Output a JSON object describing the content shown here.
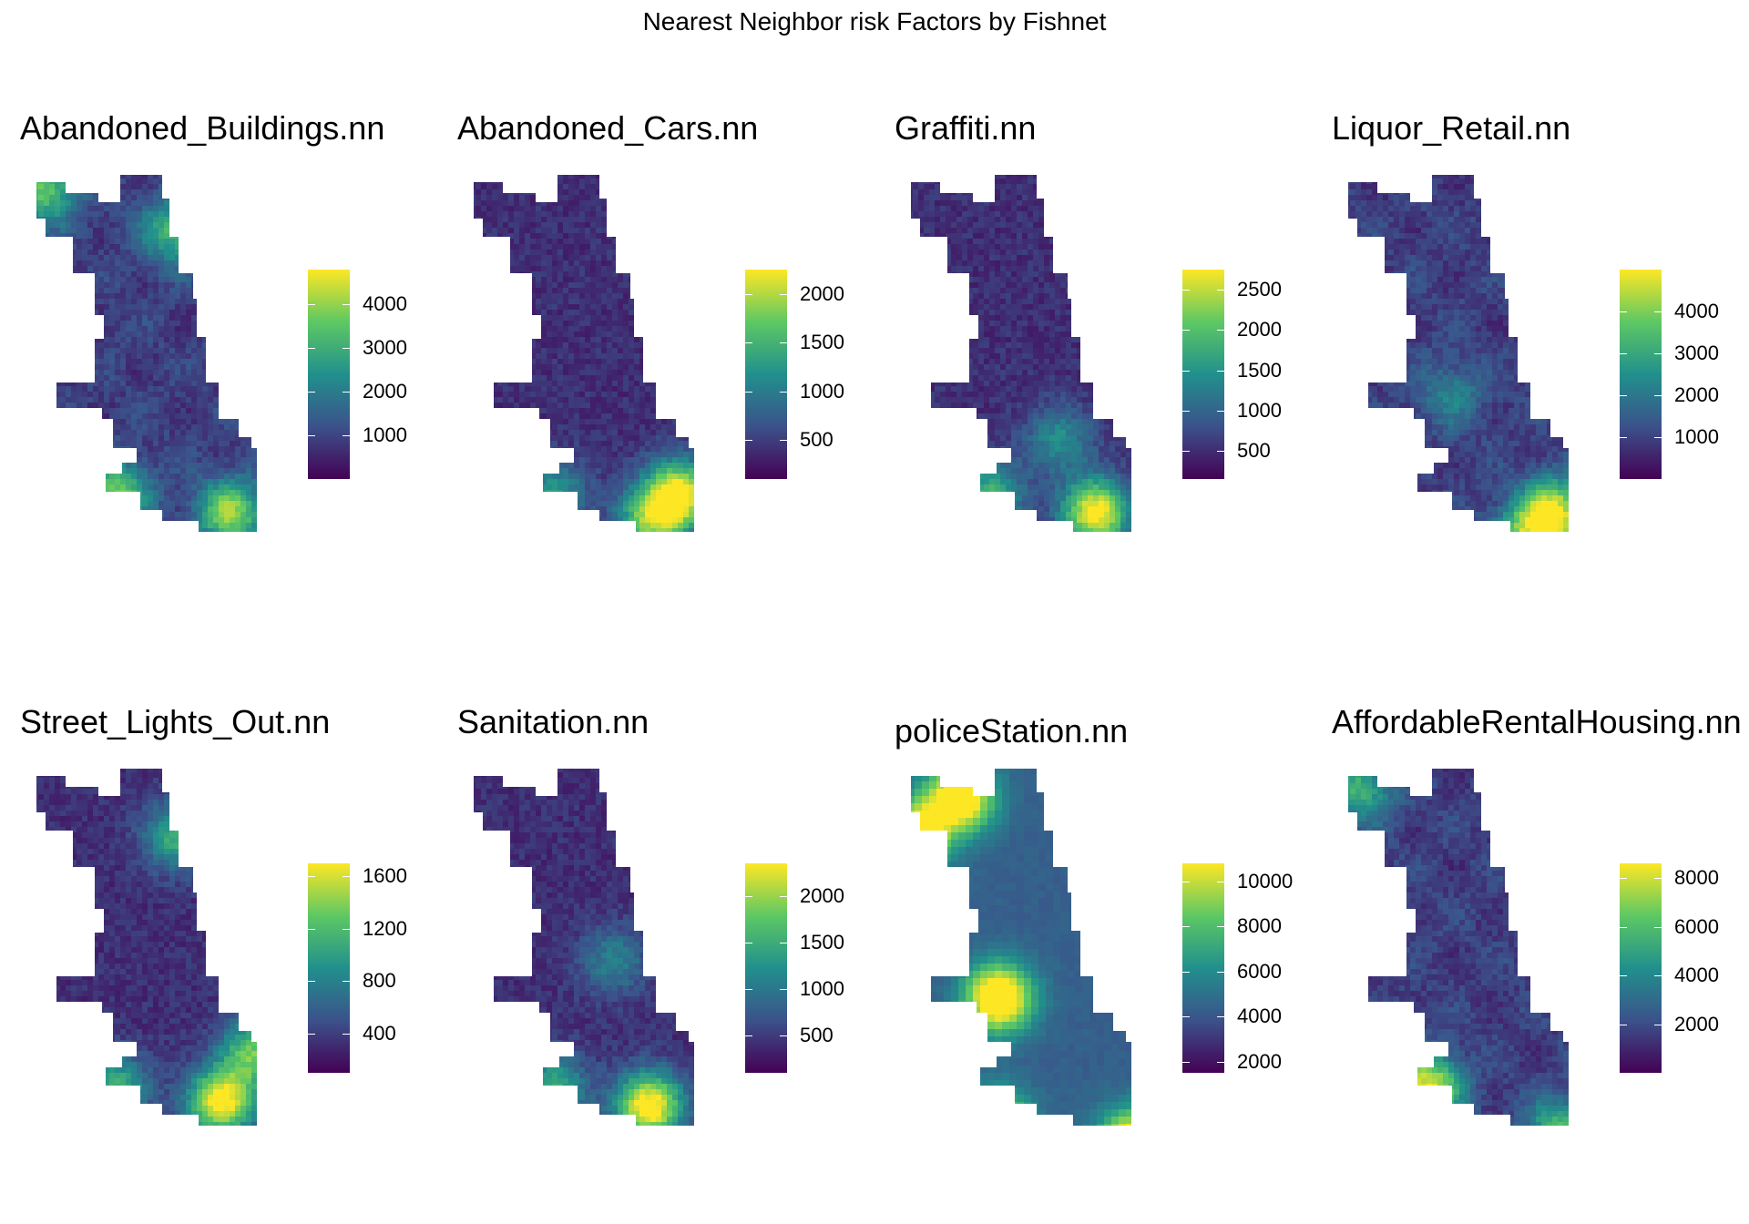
{
  "title": "Nearest Neighbor risk Factors by Fishnet",
  "colors": {
    "low": "#440154",
    "mid_low": "#3b528b",
    "mid": "#21908c",
    "mid_high": "#5dc863",
    "high": "#fde725"
  },
  "panels": [
    {
      "title": "Abandoned_Buildings.nn",
      "legend": {
        "min": 0,
        "max": 4800,
        "ticks": [
          1000,
          2000,
          3000,
          4000
        ]
      }
    },
    {
      "title": "Abandoned_Cars.nn",
      "legend": {
        "min": 100,
        "max": 2250,
        "ticks": [
          500,
          1000,
          1500,
          2000
        ]
      }
    },
    {
      "title": "Graffiti.nn",
      "legend": {
        "min": 150,
        "max": 2750,
        "ticks": [
          500,
          1000,
          1500,
          2000,
          2500
        ]
      }
    },
    {
      "title": "Liquor_Retail.nn",
      "legend": {
        "min": 0,
        "max": 5000,
        "ticks": [
          1000,
          2000,
          3000,
          4000
        ]
      }
    },
    {
      "title": "Street_Lights_Out.nn",
      "legend": {
        "min": 100,
        "max": 1700,
        "ticks": [
          400,
          800,
          1200,
          1600
        ]
      }
    },
    {
      "title": "Sanitation.nn",
      "legend": {
        "min": 100,
        "max": 2350,
        "ticks": [
          500,
          1000,
          1500,
          2000
        ]
      }
    },
    {
      "title": "policeStation.nn",
      "legend": {
        "min": 1500,
        "max": 10800,
        "ticks": [
          2000,
          4000,
          6000,
          8000,
          10000
        ]
      }
    },
    {
      "title": "AffordableRentalHousing.nn",
      "legend": {
        "min": 0,
        "max": 8600,
        "ticks": [
          2000,
          4000,
          6000,
          8000
        ]
      }
    }
  ]
}
